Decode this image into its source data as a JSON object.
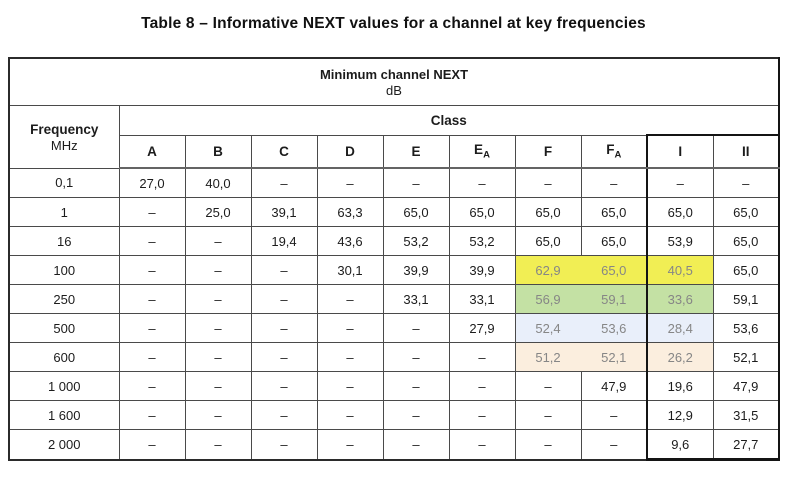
{
  "title": "Table 8 – Informative NEXT values for a channel at key frequencies",
  "table": {
    "header_title": "Minimum channel NEXT",
    "header_unit": "dB",
    "freq_label": "Frequency",
    "freq_unit": "MHz",
    "class_label": "Class",
    "columns": [
      {
        "key": "A",
        "label": "A"
      },
      {
        "key": "B",
        "label": "B"
      },
      {
        "key": "C",
        "label": "C"
      },
      {
        "key": "D",
        "label": "D"
      },
      {
        "key": "E",
        "label": "E"
      },
      {
        "key": "EA",
        "label": "E",
        "sub": "A"
      },
      {
        "key": "F",
        "label": "F"
      },
      {
        "key": "FA",
        "label": "F",
        "sub": "A"
      },
      {
        "key": "I",
        "label": "I"
      },
      {
        "key": "II",
        "label": "II"
      }
    ],
    "highlight_colors": {
      "yellow": "#f1ee54",
      "green": "#c4e1a4",
      "blue": "#e9effa",
      "peach": "#fbeede"
    },
    "rows": [
      {
        "freq": "0,1",
        "values": [
          "27,0",
          "40,0",
          "–",
          "–",
          "–",
          "–",
          "–",
          "–",
          "–",
          "–"
        ]
      },
      {
        "freq": "1",
        "values": [
          "–",
          "25,0",
          "39,1",
          "63,3",
          "65,0",
          "65,0",
          "65,0",
          "65,0",
          "65,0",
          "65,0"
        ]
      },
      {
        "freq": "16",
        "values": [
          "–",
          "–",
          "19,4",
          "43,6",
          "53,2",
          "53,2",
          "65,0",
          "65,0",
          "53,9",
          "65,0"
        ]
      },
      {
        "freq": "100",
        "values": [
          "–",
          "–",
          "–",
          "30,1",
          "39,9",
          "39,9",
          "62,9",
          "65,0",
          "40,5",
          "65,0"
        ],
        "highlight": {
          "color": "yellow",
          "cols": [
            6,
            7,
            8
          ]
        }
      },
      {
        "freq": "250",
        "values": [
          "–",
          "–",
          "–",
          "–",
          "33,1",
          "33,1",
          "56,9",
          "59,1",
          "33,6",
          "59,1"
        ],
        "highlight": {
          "color": "green",
          "cols": [
            6,
            7,
            8
          ]
        }
      },
      {
        "freq": "500",
        "values": [
          "–",
          "–",
          "–",
          "–",
          "–",
          "27,9",
          "52,4",
          "53,6",
          "28,4",
          "53,6"
        ],
        "highlight": {
          "color": "blue",
          "cols": [
            6,
            7,
            8
          ]
        }
      },
      {
        "freq": "600",
        "values": [
          "–",
          "–",
          "–",
          "–",
          "–",
          "–",
          "51,2",
          "52,1",
          "26,2",
          "52,1"
        ],
        "highlight": {
          "color": "peach",
          "cols": [
            6,
            7,
            8
          ]
        }
      },
      {
        "freq": "1 000",
        "values": [
          "–",
          "–",
          "–",
          "–",
          "–",
          "–",
          "–",
          "47,9",
          "19,6",
          "47,9"
        ]
      },
      {
        "freq": "1 600",
        "values": [
          "–",
          "–",
          "–",
          "–",
          "–",
          "–",
          "–",
          "–",
          "12,9",
          "31,5"
        ]
      },
      {
        "freq": "2 000",
        "values": [
          "–",
          "–",
          "–",
          "–",
          "–",
          "–",
          "–",
          "–",
          "9,6",
          "27,7"
        ]
      }
    ]
  }
}
